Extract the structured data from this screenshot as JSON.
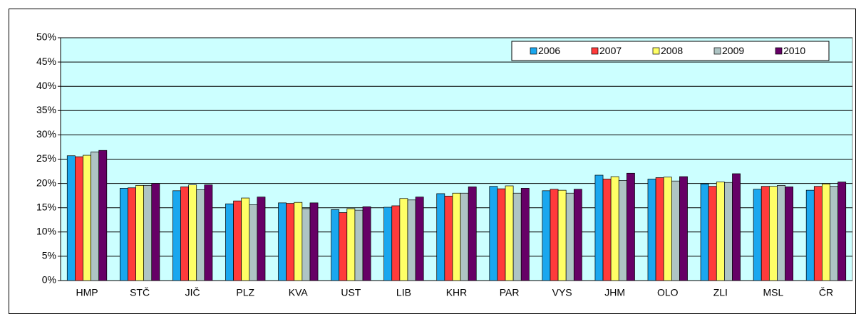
{
  "chart_data": {
    "type": "bar",
    "categories": [
      "HMP",
      "STČ",
      "JIČ",
      "PLZ",
      "KVA",
      "UST",
      "LIB",
      "KHR",
      "PAR",
      "VYS",
      "JHM",
      "OLO",
      "ZLI",
      "MSL",
      "ČR"
    ],
    "series": [
      {
        "name": "2006",
        "color": "#1aa7ef",
        "values": [
          25.7,
          19.0,
          18.5,
          15.8,
          16.0,
          14.6,
          15.1,
          17.9,
          19.4,
          18.5,
          21.7,
          20.9,
          19.9,
          18.8,
          18.6
        ]
      },
      {
        "name": "2007",
        "color": "#ff3b3b",
        "values": [
          25.5,
          19.1,
          19.3,
          16.4,
          15.9,
          14.0,
          15.4,
          17.4,
          18.9,
          18.8,
          20.9,
          21.2,
          19.4,
          19.4,
          19.4
        ]
      },
      {
        "name": "2008",
        "color": "#ffff66",
        "values": [
          25.8,
          19.6,
          19.7,
          17.0,
          16.1,
          14.8,
          16.9,
          18.0,
          19.5,
          18.6,
          21.4,
          21.3,
          20.3,
          19.4,
          19.9
        ]
      },
      {
        "name": "2009",
        "color": "#aec4c4",
        "values": [
          26.5,
          19.6,
          18.7,
          15.6,
          14.8,
          14.5,
          16.6,
          18.0,
          18.0,
          18.0,
          20.6,
          20.5,
          20.2,
          19.6,
          19.4
        ]
      },
      {
        "name": "2010",
        "color": "#660066",
        "values": [
          26.8,
          20.0,
          19.7,
          17.2,
          16.0,
          15.2,
          17.2,
          19.3,
          19.0,
          18.8,
          22.1,
          21.4,
          22.0,
          19.3,
          20.3
        ]
      }
    ],
    "ylim": [
      0,
      50
    ],
    "yticks": [
      {
        "value": 0,
        "label": "0%"
      },
      {
        "value": 5,
        "label": "5%"
      },
      {
        "value": 10,
        "label": "10%"
      },
      {
        "value": 15,
        "label": "15%"
      },
      {
        "value": 20,
        "label": "20%"
      },
      {
        "value": 25,
        "label": "25%"
      },
      {
        "value": 30,
        "label": "30%"
      },
      {
        "value": 35,
        "label": "35%"
      },
      {
        "value": 40,
        "label": "40%"
      },
      {
        "value": 45,
        "label": "45%"
      },
      {
        "value": 50,
        "label": "50%"
      }
    ],
    "grid": true,
    "legend": "top-right",
    "plot_background": "#ccffff"
  }
}
